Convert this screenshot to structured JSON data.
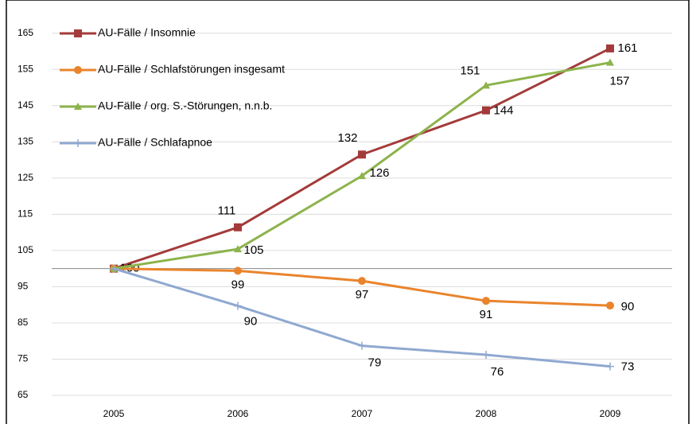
{
  "chart_data": {
    "type": "line",
    "categories": [
      "2005",
      "2006",
      "2007",
      "2008",
      "2009"
    ],
    "ylim": [
      65,
      170
    ],
    "yticks": [
      65,
      75,
      85,
      95,
      105,
      115,
      125,
      135,
      145,
      155,
      165
    ],
    "grid": true,
    "x_axis_at": 100,
    "legend": "top-left",
    "series": [
      {
        "name": "AU-Fälle / Insomnie",
        "color": "#a33b3a",
        "marker": "square",
        "values": [
          100,
          111.4,
          131.5,
          143.7,
          160.8
        ],
        "value_labels": [
          "100",
          "111",
          "132",
          "144",
          "161"
        ]
      },
      {
        "name": "AU-Fälle / Schlafstörungen insgesamt",
        "color": "#e9842c",
        "marker": "circle",
        "values": [
          100,
          99.4,
          96.6,
          91.1,
          89.8
        ],
        "value_labels": [
          null,
          "99",
          "97",
          "91",
          "90"
        ]
      },
      {
        "name": "AU-Fälle / org. S.-Störungen, n.n.b.",
        "color": "#8db34c",
        "marker": "triangle",
        "values": [
          100,
          105.4,
          125.6,
          150.6,
          156.9
        ],
        "value_labels": [
          null,
          "105",
          "126",
          "151",
          "157"
        ]
      },
      {
        "name": "AU-Fälle / Schlafapnoe",
        "color": "#8fa8d0",
        "marker": "plus",
        "values": [
          100,
          89.7,
          78.7,
          76.2,
          73.0
        ],
        "value_labels": [
          null,
          "90",
          "79",
          "76",
          "73"
        ]
      }
    ]
  }
}
